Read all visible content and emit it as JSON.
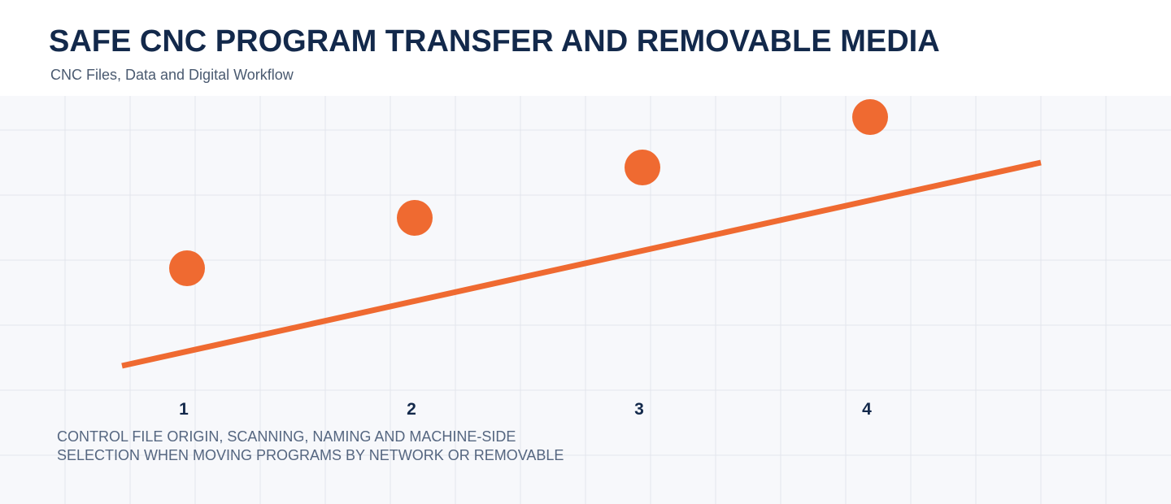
{
  "header": {
    "title": "SAFE CNC PROGRAM TRANSFER AND REMOVABLE MEDIA",
    "subtitle": "CNC Files, Data and Digital Workflow"
  },
  "steps": [
    "1",
    "2",
    "3",
    "4"
  ],
  "caption": [
    "CONTROL FILE ORIGIN, SCANNING, NAMING AND MACHINE-SIDE",
    "SELECTION WHEN MOVING PROGRAMS BY NETWORK OR REMOVABLE"
  ]
}
